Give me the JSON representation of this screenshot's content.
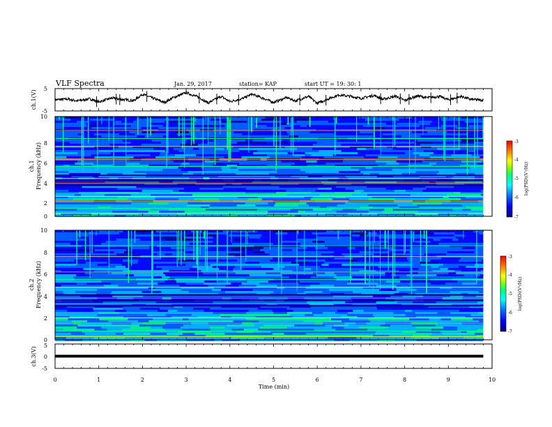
{
  "header": {
    "title": "VLF Spectra",
    "date": "Jan. 29, 2017",
    "station": "station= KAP",
    "start": "start UT = 19: 30: 1"
  },
  "colors": {
    "palette": [
      "#00007f",
      "#0000ff",
      "#0060ff",
      "#00c0ff",
      "#00ff90",
      "#a0ff00",
      "#ffff00",
      "#ff8000",
      "#ff0000"
    ],
    "trace": "#000000",
    "axes": "#000000"
  },
  "chart_data": [
    {
      "type": "line",
      "ylabel": "ch.1(V)",
      "ylim": [
        -5,
        5
      ],
      "yticks": [
        "5",
        "-5"
      ],
      "xlim": [
        0,
        10
      ],
      "x": [
        0.0,
        0.3,
        0.5,
        0.8,
        1.0,
        1.3,
        1.5,
        1.8,
        2.0,
        2.2,
        2.5,
        2.7,
        3.0,
        3.3,
        3.5,
        3.8,
        4.0,
        4.3,
        4.5,
        4.8,
        5.0,
        5.3,
        5.5,
        5.8,
        6.0,
        6.3,
        6.5,
        6.8,
        7.0,
        7.3,
        7.5,
        7.8,
        8.0,
        8.3,
        8.5,
        8.8,
        9.0,
        9.3,
        9.5,
        9.8
      ],
      "y": [
        0.0,
        0.3,
        -0.5,
        0.4,
        -1.0,
        0.8,
        0.2,
        -0.4,
        2.5,
        1.0,
        -1.2,
        0.9,
        3.2,
        1.0,
        -1.4,
        1.5,
        -0.8,
        0.6,
        2.5,
        0.4,
        -1.2,
        1.0,
        -0.5,
        1.5,
        -1.6,
        0.8,
        2.2,
        1.4,
        0.6,
        2.0,
        0.2,
        1.6,
        -0.3,
        1.8,
        0.9,
        1.5,
        0.0,
        1.5,
        0.2,
        -0.2
      ]
    },
    {
      "type": "heatmap",
      "ylabel": "ch.1",
      "ylabel2": "Frequency (kHz)",
      "xlim": [
        0,
        10
      ],
      "ylim": [
        0,
        10
      ],
      "yticks": [
        "0",
        "2",
        "4",
        "6",
        "8",
        "10"
      ],
      "colorbar": {
        "label": "log(PSD)(V²/Hz)",
        "range": [
          -7,
          -3
        ],
        "ticks": [
          "-3",
          "-4",
          "-5",
          "-6",
          "-7"
        ]
      },
      "bands_khz": [
        0.3,
        0.8,
        1.5,
        2.0,
        2.3,
        3.3,
        3.8,
        5.0,
        5.7,
        7.0,
        7.8,
        8.6
      ]
    },
    {
      "type": "heatmap",
      "ylabel": "ch.2",
      "ylabel2": "Frequency (kHz)",
      "xlim": [
        0,
        10
      ],
      "ylim": [
        0,
        10
      ],
      "yticks": [
        "0",
        "2",
        "4",
        "6",
        "8",
        "10"
      ],
      "colorbar": {
        "label": "log(PSD)(V²/Hz)",
        "range": [
          -7,
          -3
        ],
        "ticks": [
          "-3",
          "-4",
          "-5",
          "-6",
          "-7"
        ]
      },
      "bands_khz": [
        0.3,
        0.8,
        1.5,
        2.0,
        3.3,
        3.8,
        4.8,
        5.5,
        6.2,
        7.6,
        8.6
      ]
    },
    {
      "type": "line",
      "ylabel": "ch.3(V)",
      "ylim": [
        -5,
        5
      ],
      "yticks": [
        "5",
        "0",
        "-5"
      ],
      "xlim": [
        0,
        10
      ],
      "x": [
        0,
        9.8
      ],
      "y": [
        0,
        0
      ],
      "xlabel": "Time (min)",
      "xticks": [
        "0",
        "1",
        "2",
        "3",
        "4",
        "5",
        "6",
        "7",
        "8",
        "9",
        "10"
      ]
    }
  ]
}
